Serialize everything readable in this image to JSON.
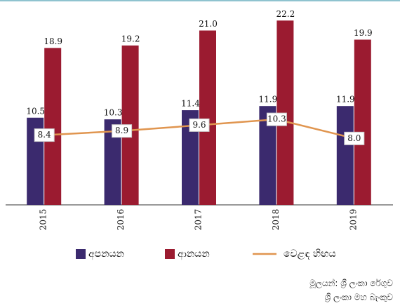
{
  "chart_data": {
    "type": "bar-line",
    "categories": [
      "2015",
      "2016",
      "2017",
      "2018",
      "2019"
    ],
    "series": [
      {
        "name": "අපනයන",
        "color": "#3b2a6e",
        "kind": "bar",
        "values": [
          10.5,
          10.3,
          11.4,
          11.9,
          11.9
        ],
        "value_labels": [
          "10.5",
          "10.3",
          "11.4",
          "11.9",
          "11.9"
        ]
      },
      {
        "name": "ආනයන",
        "color": "#9b1b30",
        "kind": "bar",
        "values": [
          18.9,
          19.2,
          21.0,
          22.2,
          19.9
        ],
        "value_labels": [
          "18.9",
          "19.2",
          "21.0",
          "22.2",
          "19.9"
        ]
      },
      {
        "name": "වෙළඳ හිඟය",
        "color": "#e0954f",
        "kind": "line",
        "values": [
          8.4,
          8.9,
          9.6,
          10.3,
          8.0
        ],
        "value_labels": [
          "8.4",
          "8.9",
          "9.6",
          "10.3",
          "8.0"
        ]
      }
    ],
    "ylim": [
      0,
      24
    ],
    "source": [
      "මූලයන්: ශ්‍රී ලංකා රේගුව",
      "ශ්‍රී ලංකා මහ බැංකුව"
    ]
  }
}
